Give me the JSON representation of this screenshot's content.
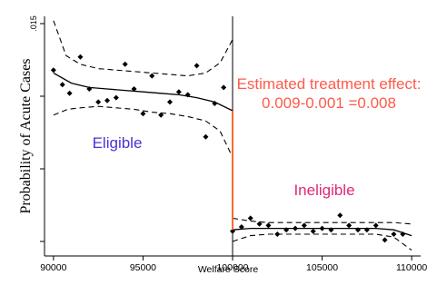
{
  "chart_data": {
    "type": "scatter",
    "title": "",
    "xlabel": "Welfare Score",
    "ylabel": "Probability of Acute Cases",
    "xlim": [
      89500,
      110500
    ],
    "ylim": [
      -0.001,
      0.0155
    ],
    "x_ticks": [
      90000,
      95000,
      100000,
      105000,
      110000
    ],
    "x_tick_labels": [
      "90000",
      "95000",
      "100000",
      "105000",
      "110000"
    ],
    "y_ticks": [
      0,
      0.005,
      0.01,
      0.015
    ],
    "y_tick_labels": [
      "",
      "",
      "",
      ".015"
    ],
    "cutoff": 100000,
    "grid": false,
    "legend": "none",
    "series": [
      {
        "name": "Eligible",
        "points": [
          [
            90000,
            0.0118
          ],
          [
            90500,
            0.0108
          ],
          [
            90900,
            0.0102
          ],
          [
            91500,
            0.0127
          ],
          [
            92000,
            0.0105
          ],
          [
            92500,
            0.0096
          ],
          [
            93000,
            0.0097
          ],
          [
            93500,
            0.0099
          ],
          [
            94000,
            0.0122
          ],
          [
            94500,
            0.0105
          ],
          [
            95000,
            0.0088
          ],
          [
            95500,
            0.0114
          ],
          [
            96000,
            0.0087
          ],
          [
            96500,
            0.0096
          ],
          [
            97000,
            0.0103
          ],
          [
            97500,
            0.0101
          ],
          [
            98000,
            0.0121
          ],
          [
            98500,
            0.0072
          ],
          [
            99000,
            0.0095
          ],
          [
            99500,
            0.0106
          ]
        ],
        "fit_line": [
          [
            90000,
            0.0116
          ],
          [
            91000,
            0.0109
          ],
          [
            92000,
            0.0106
          ],
          [
            93000,
            0.0105
          ],
          [
            94000,
            0.0104
          ],
          [
            95000,
            0.0103
          ],
          [
            96000,
            0.0102
          ],
          [
            97000,
            0.0101
          ],
          [
            98000,
            0.0099
          ],
          [
            99000,
            0.0096
          ],
          [
            100000,
            0.009
          ]
        ],
        "ci_upper": [
          [
            90000,
            0.0152
          ],
          [
            90700,
            0.0128
          ],
          [
            91500,
            0.0122
          ],
          [
            92500,
            0.0119
          ],
          [
            93500,
            0.0118
          ],
          [
            94500,
            0.0117
          ],
          [
            95500,
            0.0116
          ],
          [
            96500,
            0.0115
          ],
          [
            97500,
            0.0114
          ],
          [
            98500,
            0.0116
          ],
          [
            99300,
            0.0123
          ],
          [
            100000,
            0.0139
          ]
        ],
        "ci_lower": [
          [
            90000,
            0.0087
          ],
          [
            90800,
            0.0091
          ],
          [
            91500,
            0.0092
          ],
          [
            92500,
            0.0093
          ],
          [
            93500,
            0.0092
          ],
          [
            94500,
            0.0091
          ],
          [
            95500,
            0.0089
          ],
          [
            96500,
            0.0088
          ],
          [
            97500,
            0.0086
          ],
          [
            98500,
            0.0083
          ],
          [
            99300,
            0.0076
          ],
          [
            100000,
            0.0058
          ]
        ]
      },
      {
        "name": "Ineligible",
        "points": [
          [
            100000,
            0.0007
          ],
          [
            100500,
            0.001
          ],
          [
            101000,
            0.0016
          ],
          [
            101500,
            0.0012
          ],
          [
            102000,
            0.0011
          ],
          [
            102500,
            0.0005
          ],
          [
            103000,
            0.0008
          ],
          [
            103500,
            0.0009
          ],
          [
            104000,
            0.0011
          ],
          [
            104500,
            0.0007
          ],
          [
            105000,
            0.0009
          ],
          [
            105500,
            0.0008
          ],
          [
            106000,
            0.0018
          ],
          [
            106500,
            0.0011
          ],
          [
            107000,
            0.0008
          ],
          [
            107500,
            0.0008
          ],
          [
            108000,
            0.0011
          ],
          [
            108500,
            0.0001
          ],
          [
            109000,
            0.0005
          ],
          [
            109500,
            0.0005
          ]
        ],
        "fit_line": [
          [
            100000,
            0.0008
          ],
          [
            101000,
            0.0009
          ],
          [
            102000,
            0.0009
          ],
          [
            103000,
            0.0009
          ],
          [
            104000,
            0.0009
          ],
          [
            105000,
            0.0009
          ],
          [
            106000,
            0.0009
          ],
          [
            107000,
            0.0009
          ],
          [
            108000,
            0.0009
          ],
          [
            109000,
            0.0008
          ],
          [
            110000,
            0.0004
          ]
        ],
        "ci_upper": [
          [
            100000,
            0.0016
          ],
          [
            101000,
            0.0014
          ],
          [
            102000,
            0.0013
          ],
          [
            103000,
            0.0013
          ],
          [
            104000,
            0.0013
          ],
          [
            105000,
            0.0013
          ],
          [
            106000,
            0.0013
          ],
          [
            107000,
            0.0013
          ],
          [
            108000,
            0.0013
          ],
          [
            109000,
            0.0013
          ],
          [
            110000,
            0.0012
          ]
        ],
        "ci_lower": [
          [
            100000,
            0.0
          ],
          [
            101000,
            0.0004
          ],
          [
            102000,
            0.0005
          ],
          [
            103000,
            0.0005
          ],
          [
            104000,
            0.0005
          ],
          [
            105000,
            0.0005
          ],
          [
            106000,
            0.0005
          ],
          [
            107000,
            0.0005
          ],
          [
            108000,
            0.0005
          ],
          [
            109000,
            0.0003
          ],
          [
            110000,
            -0.0006
          ]
        ]
      }
    ],
    "treatment_effect_segment": {
      "x": 100000,
      "y_from": 0.009,
      "y_to": 0.0008
    },
    "annotations": {
      "effect_line1": "Estimated treatment effect:",
      "effect_line2": "0.009-0.001 =0.008",
      "eligible_label": "Eligible",
      "ineligible_label": "Ineligible"
    },
    "colors": {
      "effect_text": "#ff5a4a",
      "effect_segment": "#ff6a2a",
      "eligible_label": "#4633d6",
      "ineligible_label": "#e0287a",
      "data": "#000000"
    }
  }
}
